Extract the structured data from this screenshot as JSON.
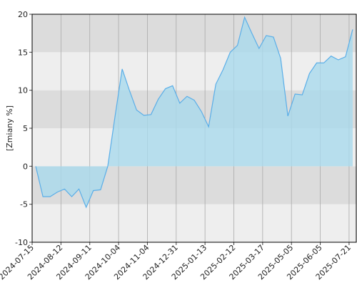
{
  "chart_data": {
    "type": "area",
    "y_label": "[Zmiany %]",
    "values": [
      0,
      -4,
      -4,
      -3.4,
      -3,
      -4,
      -3,
      -5.4,
      -3.2,
      -3.1,
      0,
      6.5,
      12.8,
      10,
      7.4,
      6.7,
      6.8,
      8.8,
      10.2,
      10.6,
      8.3,
      9.2,
      8.7,
      7.2,
      5.2,
      10.8,
      12.7,
      15,
      15.9,
      19.6,
      17.5,
      15.5,
      17.2,
      17,
      14.2,
      6.6,
      9.5,
      9.4,
      12.2,
      13.6,
      13.6,
      14.5,
      14,
      14.4,
      18
    ],
    "color": "#5aaee8",
    "fill": "#a9d9ec",
    "xlim": [
      -0.5,
      44.5
    ],
    "xticks": [
      {
        "value": -0.5,
        "label": "2024-07-15"
      },
      {
        "value": 3.5,
        "label": "2024-08-12"
      },
      {
        "value": 7.5,
        "label": "2024-09-11"
      },
      {
        "value": 11.5,
        "label": "2024-10-04"
      },
      {
        "value": 15.5,
        "label": "2024-11-04"
      },
      {
        "value": 19.5,
        "label": "2024-12-31"
      },
      {
        "value": 23.5,
        "label": "2025-01-13"
      },
      {
        "value": 27.5,
        "label": "2025-02-12"
      },
      {
        "value": 31.5,
        "label": "2025-03-17"
      },
      {
        "value": 35.5,
        "label": "2025-05-05"
      },
      {
        "value": 39.5,
        "label": "2025-06-05"
      },
      {
        "value": 43.5,
        "label": "2025-07-21"
      }
    ],
    "ylim": [
      -10,
      20
    ],
    "yticks": [
      -10,
      -5,
      0,
      5,
      10,
      15,
      20
    ],
    "grid": true
  }
}
